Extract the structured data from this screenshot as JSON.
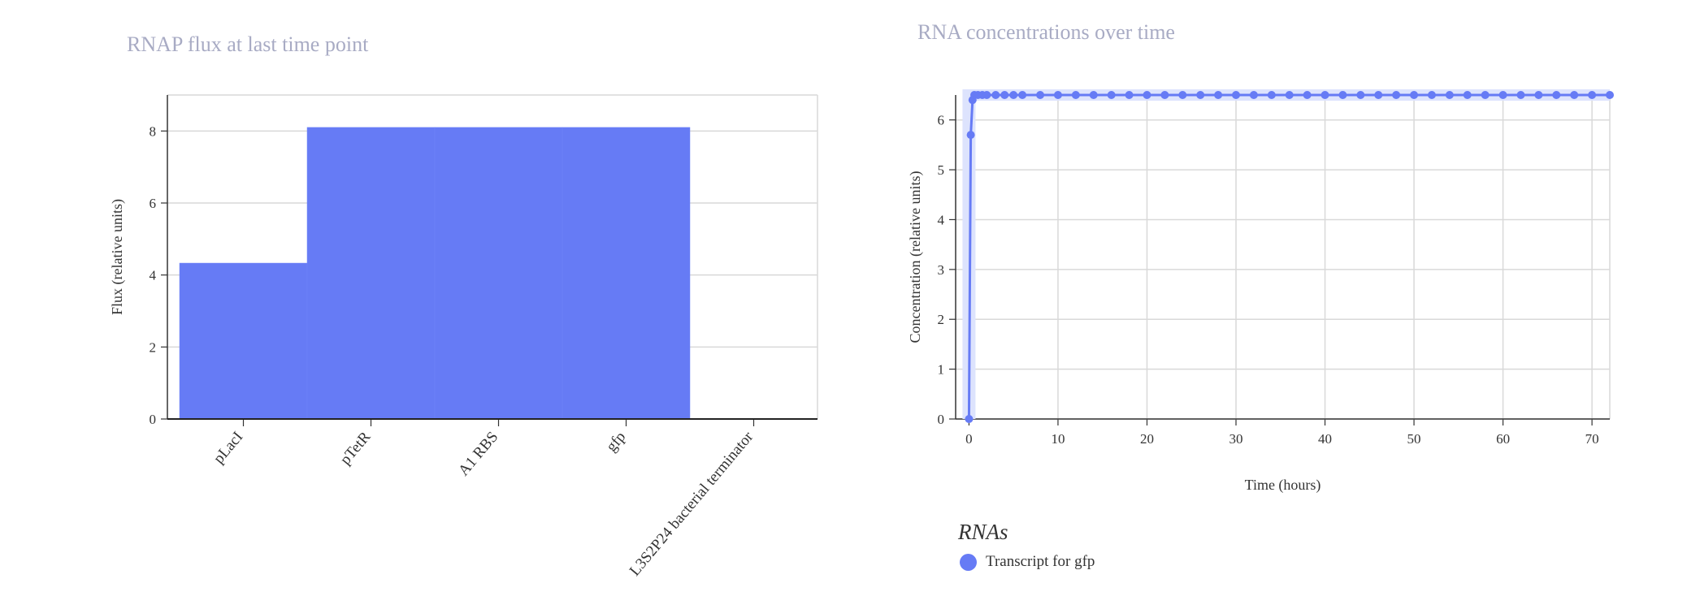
{
  "chart_data": [
    {
      "type": "bar",
      "title": "RNAP flux at last time point",
      "ylabel": "Flux (relative units)",
      "xlabel": "",
      "categories": [
        "pLacI",
        "pTetR",
        "A1 RBS",
        "gfp",
        "L3S2P24 bacterial terminator"
      ],
      "values": [
        4.33,
        8.1,
        8.1,
        8.1,
        0
      ],
      "ylim": [
        0,
        9
      ],
      "yticks": [
        0,
        2,
        4,
        6,
        8
      ],
      "grid": true,
      "color": "#667bf5"
    },
    {
      "type": "line",
      "title": "RNA concentrations over time",
      "xlabel": "Time (hours)",
      "ylabel": "Concentration (relative units)",
      "xlim": [
        -1.5,
        72
      ],
      "ylim": [
        0,
        6.5
      ],
      "xticks": [
        0,
        10,
        20,
        30,
        40,
        50,
        60,
        70
      ],
      "yticks": [
        0,
        1,
        2,
        3,
        4,
        5,
        6
      ],
      "grid": true,
      "legend_title": "RNAs",
      "legend_placement": "bottom-left",
      "series": [
        {
          "name": "Transcript for gfp",
          "color": "#667bf5",
          "x": [
            0,
            0.2,
            0.4,
            0.6,
            1,
            1.5,
            2,
            3,
            4,
            5,
            6,
            8,
            10,
            12,
            14,
            16,
            18,
            20,
            22,
            24,
            26,
            28,
            30,
            32,
            34,
            36,
            38,
            40,
            42,
            44,
            46,
            48,
            50,
            52,
            54,
            56,
            58,
            60,
            62,
            64,
            66,
            68,
            70,
            72
          ],
          "y": [
            0,
            5.7,
            6.4,
            6.5,
            6.5,
            6.5,
            6.5,
            6.5,
            6.5,
            6.5,
            6.5,
            6.5,
            6.5,
            6.5,
            6.5,
            6.5,
            6.5,
            6.5,
            6.5,
            6.5,
            6.5,
            6.5,
            6.5,
            6.5,
            6.5,
            6.5,
            6.5,
            6.5,
            6.5,
            6.5,
            6.5,
            6.5,
            6.5,
            6.5,
            6.5,
            6.5,
            6.5,
            6.5,
            6.5,
            6.5,
            6.5,
            6.5,
            6.5,
            6.5
          ]
        }
      ]
    }
  ]
}
